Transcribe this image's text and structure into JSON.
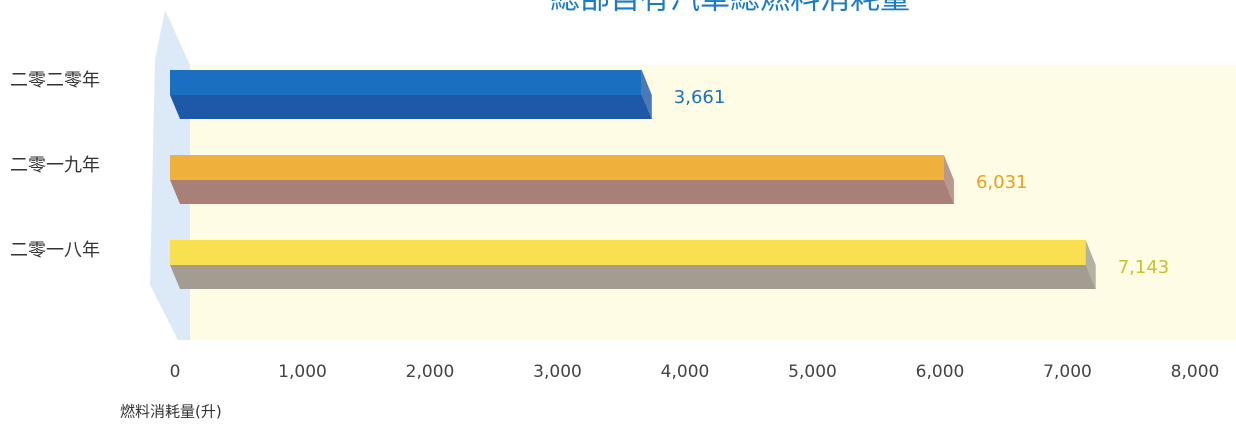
{
  "chart_data": {
    "type": "bar3d",
    "orientation": "horizontal",
    "title": "總部自有汽車總燃料消耗量",
    "categories": [
      "二零二零年",
      "二零一九年",
      "二零一八年"
    ],
    "values": [
      3661,
      6031,
      7143
    ],
    "value_labels": [
      "3,661",
      "6,031",
      "7,143"
    ],
    "colors": [
      "#1a70c0",
      "#f0b03c",
      "#f8e050"
    ],
    "shade_colors": [
      "#1e58a8",
      "#a88078",
      "#a39c90"
    ],
    "label_colors": [
      "#1a70c0",
      "#e8a020",
      "#c8c030"
    ],
    "xlabel": "燃料消耗量(升)",
    "xlim": [
      0,
      8000
    ],
    "xticks": [
      0,
      {
        "value": 1000,
        "label": "1,000"
      },
      {
        "value": 2000,
        "label": "2,000"
      },
      {
        "value": 3000,
        "label": "3,000"
      },
      {
        "value": 4000,
        "label": "4,000"
      },
      {
        "value": 5000,
        "label": "5,000"
      },
      {
        "value": 6000,
        "label": "6,000"
      },
      {
        "value": 7000,
        "label": "7,000"
      },
      {
        "value": 8000,
        "label": "8,000"
      }
    ]
  }
}
